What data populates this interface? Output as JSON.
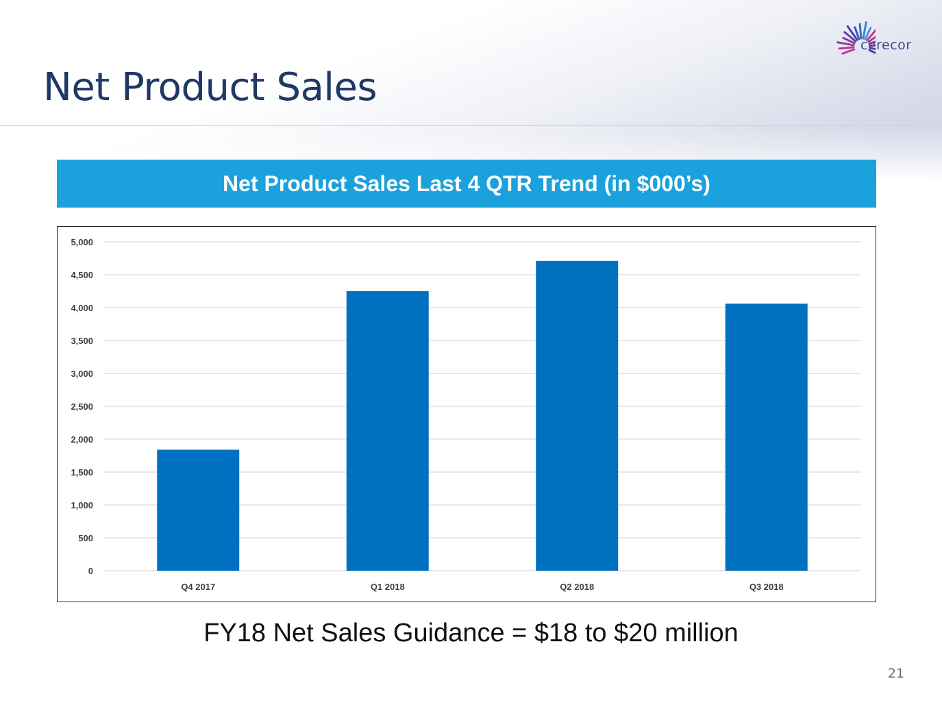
{
  "slide": {
    "title": "Net Product Sales",
    "logo_text": "cerecor",
    "chart_banner": "Net Product Sales Last 4 QTR Trend (in $000’s)",
    "guidance": "FY18 Net Sales Guidance = $18 to $20 million",
    "page_number": "21"
  },
  "colors": {
    "title": "#1f3864",
    "banner": "#1ba1dc",
    "bar": "#0070c0",
    "logo": "#3a4a9a"
  },
  "icons": {
    "logo": "cerecor-swirl-logo"
  },
  "chart_data": {
    "type": "bar",
    "title": "Net Product Sales Last 4 QTR Trend (in $000’s)",
    "categories": [
      "Q4 2017",
      "Q1 2018",
      "Q2 2018",
      "Q3 2018"
    ],
    "values": [
      1840,
      4250,
      4710,
      4060
    ],
    "ylim": [
      0,
      5000
    ],
    "yticks": [
      0,
      500,
      1000,
      1500,
      2000,
      2500,
      3000,
      3500,
      4000,
      4500,
      5000
    ],
    "ytick_labels": [
      "0",
      "500",
      "1,000",
      "1,500",
      "2,000",
      "2,500",
      "3,000",
      "3,500",
      "4,000",
      "4,500",
      "5,000"
    ],
    "grid": true,
    "legend": "none"
  }
}
